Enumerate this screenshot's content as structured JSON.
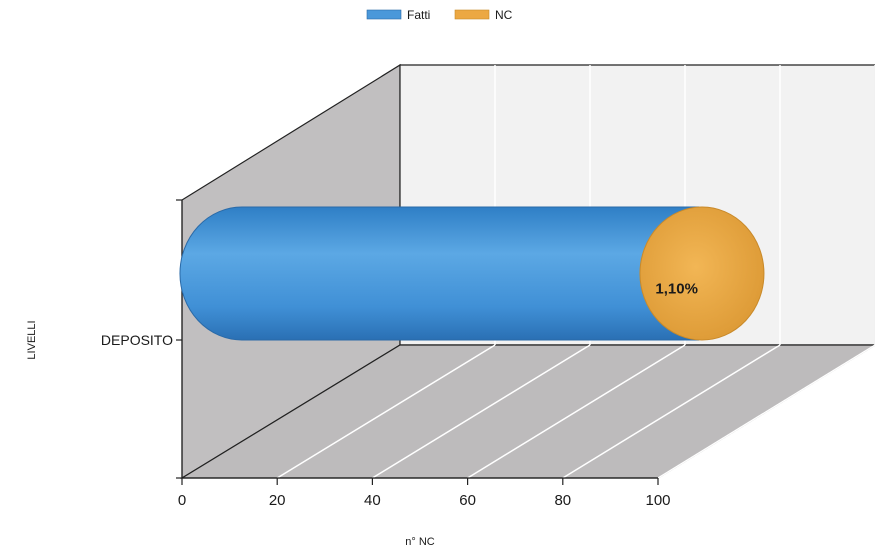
{
  "chart_data": {
    "type": "bar",
    "orientation": "horizontal",
    "three_d": true,
    "stacked": true,
    "categories": [
      "DEPOSITO"
    ],
    "series": [
      {
        "name": "Fatti",
        "values": [
          98.9
        ],
        "color": "#4a98da"
      },
      {
        "name": "NC",
        "values": [
          1.1
        ],
        "color": "#eca843"
      }
    ],
    "data_labels": [
      {
        "series": "NC",
        "category": "DEPOSITO",
        "text": "1,10%"
      }
    ],
    "xlabel": "n° NC",
    "ylabel": "LIVELLI",
    "xlim": [
      0,
      100
    ],
    "xticks": [
      "0",
      "20",
      "40",
      "60",
      "80",
      "100"
    ],
    "grid": true,
    "legend": "top-center"
  }
}
